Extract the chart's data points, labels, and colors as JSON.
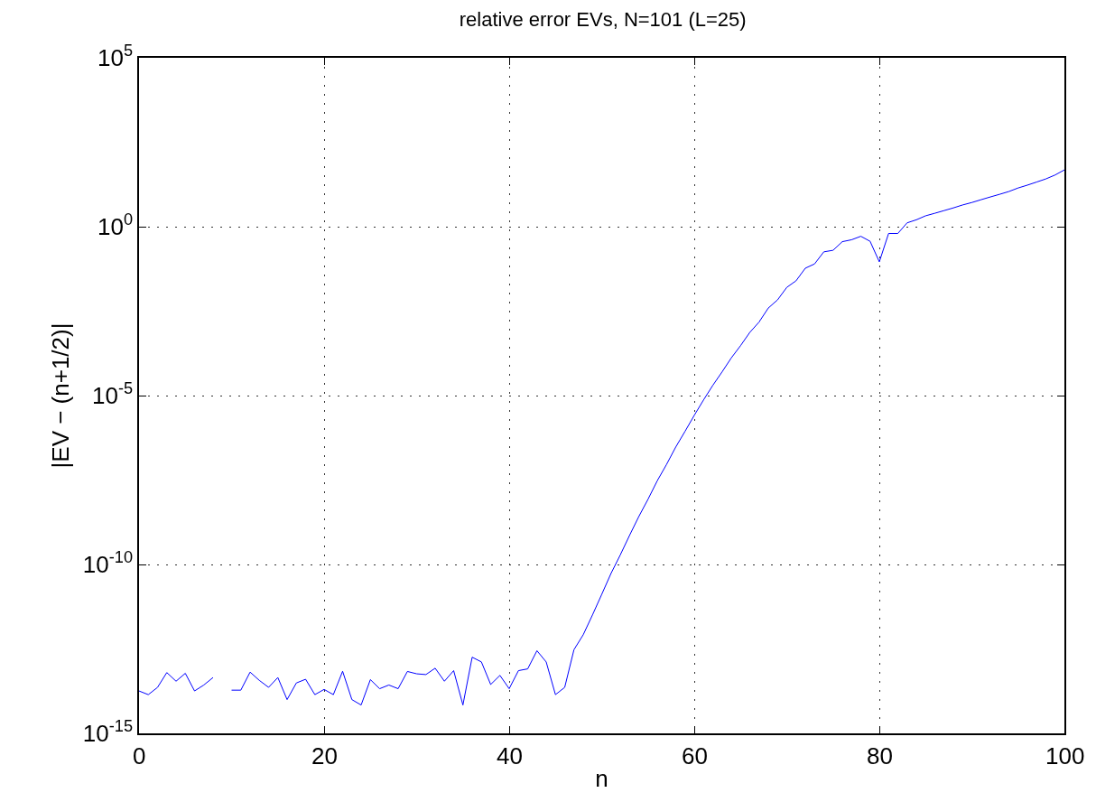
{
  "chart_data": {
    "type": "line",
    "title": "relative error EVs, N=101 (L=25)",
    "xlabel": "n",
    "ylabel": "|EV − (n+1/2)|",
    "x": [
      0,
      1,
      2,
      3,
      4,
      5,
      6,
      7,
      8,
      9,
      10,
      11,
      12,
      13,
      14,
      15,
      16,
      17,
      18,
      19,
      20,
      21,
      22,
      23,
      24,
      25,
      26,
      27,
      28,
      29,
      30,
      31,
      32,
      33,
      34,
      35,
      36,
      37,
      38,
      39,
      40,
      41,
      42,
      43,
      44,
      45,
      46,
      47,
      48,
      49,
      50,
      51,
      52,
      53,
      54,
      55,
      56,
      57,
      58,
      59,
      60,
      61,
      62,
      63,
      64,
      65,
      66,
      67,
      68,
      69,
      70,
      71,
      72,
      73,
      74,
      75,
      76,
      77,
      78,
      79,
      80,
      81,
      82,
      83,
      84,
      85,
      86,
      87,
      88,
      89,
      90,
      91,
      92,
      93,
      94,
      95,
      96,
      97,
      98,
      99,
      100
    ],
    "series": [
      {
        "color": "#0000ff",
        "values": [
          1.8e-14,
          1.4e-14,
          2.3e-14,
          6.3e-14,
          3.5e-14,
          6e-14,
          1.8e-14,
          2.7e-14,
          4.5e-14,
          null,
          1.9e-14,
          1.9e-14,
          6.5e-14,
          3.7e-14,
          2.3e-14,
          4.5e-14,
          1e-14,
          3.1e-14,
          4e-14,
          1.4e-14,
          2e-14,
          1.4e-14,
          6.9e-14,
          1e-14,
          6.9e-15,
          3.9e-14,
          2.1e-14,
          2.7e-14,
          2.1e-14,
          6.8e-14,
          5.8e-14,
          5.5e-14,
          8.5e-14,
          3.5e-14,
          7.2e-14,
          6.9e-15,
          1.8e-13,
          1.3e-13,
          2.8e-14,
          5.2e-14,
          2.1e-14,
          7.2e-14,
          8.1e-14,
          2.8e-13,
          1.3e-13,
          1.4e-14,
          2.3e-14,
          3e-13,
          8.3e-13,
          3.2e-12,
          1.3e-11,
          5.4e-11,
          1.9e-10,
          7.2e-10,
          2.6e-09,
          8.5e-09,
          3e-08,
          9.1e-08,
          3e-07,
          8.7e-07,
          2.6e-06,
          7.4e-06,
          2e-05,
          5e-05,
          0.00013,
          0.0003,
          0.00074,
          0.0015,
          0.0039,
          0.0068,
          0.016,
          0.025,
          0.059,
          0.079,
          0.18,
          0.2,
          0.36,
          0.41,
          0.52,
          0.37,
          0.091,
          0.63,
          0.63,
          1.3,
          1.6,
          2.1,
          2.5,
          3.0,
          3.6,
          4.4,
          5.2,
          6.3,
          7.6,
          9.1,
          11,
          14,
          17,
          21,
          26,
          34,
          48
        ]
      }
    ],
    "log": "y",
    "xlim": [
      0,
      100
    ],
    "xticks": [
      0,
      20,
      40,
      60,
      80,
      100
    ],
    "ylim": [
      1e-15,
      100000.0
    ],
    "yticks": [
      {
        "value": 1e-15,
        "label": "10$^{-15}$"
      },
      {
        "value": 1e-10,
        "label": "10$^{-10}$"
      },
      {
        "value": 1e-05,
        "label": "10$^{-5}$"
      },
      {
        "value": 1,
        "label": "10$^{0}$"
      },
      {
        "value": 100000.0,
        "label": "10$^{5}$"
      }
    ],
    "grid": true,
    "line_style": "solid",
    "marker": "none"
  }
}
